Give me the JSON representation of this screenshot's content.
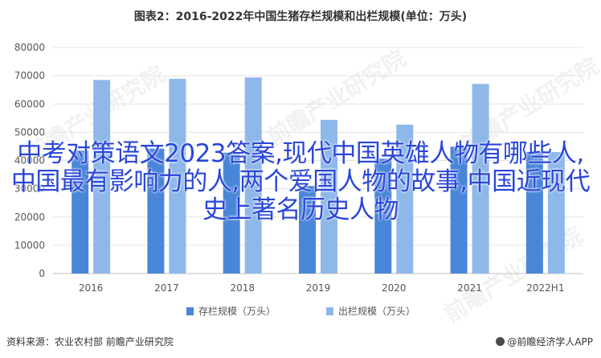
{
  "chart_data": {
    "type": "bar",
    "title": "图表2：2016-2022年中国生猪存栏规模和出栏规模(单位：万头)",
    "categories": [
      "2016",
      "2017",
      "2018",
      "2019",
      "2020",
      "2021",
      "2022H1"
    ],
    "series": [
      {
        "name": "存栏规模（万头）",
        "color": "#4a86d8",
        "values": [
          43500,
          44200,
          42800,
          31000,
          40650,
          44900,
          43000
        ]
      },
      {
        "name": "出栏规模（万头）",
        "color": "#8fb8ea",
        "values": [
          68500,
          68900,
          69400,
          54400,
          52700,
          67100,
          43000
        ]
      }
    ],
    "yticks": [
      0,
      10000,
      20000,
      30000,
      40000,
      50000,
      60000,
      70000,
      80000
    ],
    "ylim": [
      0,
      80000
    ],
    "grid": true,
    "legend": "bottom"
  },
  "overlay_text": "中考对策语文2023答案,现代中国英雄人物有哪些人,中国最有影响力的人,两个爱国人物的故事,中国近现代史上著名历史人物",
  "footer": {
    "source": "资料来源：农业农村部 前瞻产业研究院",
    "brand": "@前瞻经济学人APP"
  },
  "watermark": "前瞻产业研究院"
}
